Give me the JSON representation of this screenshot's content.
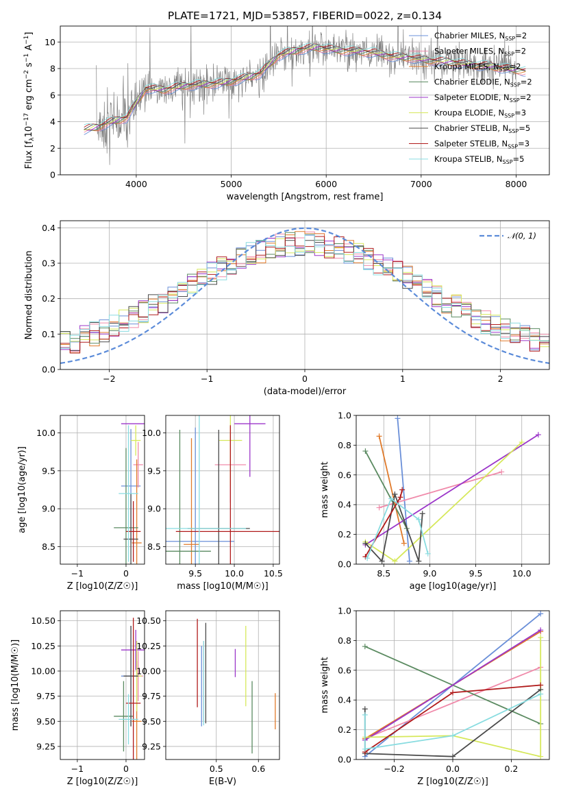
{
  "title": "PLATE=1721, MJD=53857, FIBERID=0022, z=0.134",
  "colors": {
    "data": "#808080",
    "normal": "#5b8bd9"
  },
  "series": [
    {
      "name": "Chabrier MILES, N$_{SSP}$=2",
      "leg_main": "Chabrier MILES, N",
      "leg_val": "=2",
      "color": "#6a8fd8"
    },
    {
      "name": "Salpeter MILES, N$_{SSP}$=2",
      "leg_main": "Salpeter MILES, N",
      "leg_val": "=2",
      "color": "#f08aaa"
    },
    {
      "name": "Kroupa MILES, N$_{SSP}$=2",
      "leg_main": "Kroupa MILES, N",
      "leg_val": "=2",
      "color": "#e07a2a"
    },
    {
      "name": "Chabrier ELODIE, N$_{SSP}$=2",
      "leg_main": "Chabrier ELODIE, N",
      "leg_val": "=2",
      "color": "#5a8a60"
    },
    {
      "name": "Salpeter ELODIE, N$_{SSP}$=2",
      "leg_main": "Salpeter ELODIE, N",
      "leg_val": "=2",
      "color": "#9b35c9"
    },
    {
      "name": "Kroupa ELODIE, N$_{SSP}$=3",
      "leg_main": "Kroupa ELODIE, N",
      "leg_val": "=3",
      "color": "#d6e85a"
    },
    {
      "name": "Chabrier STELIB, N$_{SSP}$=5",
      "leg_main": "Chabrier STELIB, N",
      "leg_val": "=5",
      "color": "#4a4a4a"
    },
    {
      "name": "Salpeter STELIB, N$_{SSP}$=3",
      "leg_main": "Salpeter STELIB, N",
      "leg_val": "=3",
      "color": "#b01a1a"
    },
    {
      "name": "Kroupa STELIB, N$_{SSP}$=5",
      "leg_main": "Kroupa STELIB, N",
      "leg_val": "=5",
      "color": "#88dce0"
    }
  ],
  "chart_data": [
    {
      "type": "line",
      "id": "spectrum",
      "xlabel": "wavelength [Angstrom, rest frame]",
      "ylabel": "Flux [f$_\\lambda$ 10$^{-17}$ erg cm$^{-2}$ s$^{-1}$ A$^{-1}$]",
      "ylabel_parts": [
        "Flux [f",
        "10",
        "erg cm",
        "s",
        "A",
        "]"
      ],
      "xlim": [
        3200,
        8350
      ],
      "ylim": [
        0,
        11.2
      ],
      "xticks": [
        4000,
        5000,
        6000,
        7000,
        8000
      ],
      "yticks": [
        0,
        2,
        4,
        6,
        8,
        10
      ],
      "model_continuum": {
        "x": [
          3450,
          3600,
          3700,
          3800,
          3900,
          4000,
          4100,
          4300,
          4500,
          4700,
          4900,
          5100,
          5300,
          5500,
          5700,
          5900,
          6100,
          6300,
          6500,
          6700,
          6900,
          7100,
          7300,
          7500,
          7700,
          7900,
          8100
        ],
        "y": [
          3.4,
          3.6,
          3.9,
          4.1,
          4.3,
          5.4,
          6.5,
          6.4,
          6.7,
          6.8,
          6.9,
          7.2,
          7.6,
          9.0,
          9.4,
          9.6,
          9.4,
          9.3,
          9.2,
          8.9,
          8.8,
          8.6,
          8.5,
          8.3,
          8.2,
          8.0,
          7.8
        ]
      },
      "data_note": "noisy observed spectrum shown as gray line"
    },
    {
      "type": "histogram",
      "id": "residuals",
      "xlabel": "(data-model)/error",
      "ylabel": "Normed distribution",
      "xlim": [
        -2.5,
        2.5
      ],
      "ylim": [
        0,
        0.42
      ],
      "xticks": [
        -2,
        -1,
        0,
        1,
        2
      ],
      "yticks": [
        0.0,
        0.1,
        0.2,
        0.3,
        0.4
      ],
      "legend": "$\\mathcal{N}(0,1)$",
      "legend_text": "𝒩(0, 1)",
      "bin_width": 0.1
    },
    {
      "type": "scatter",
      "id": "age_vs_Z",
      "xlabel": "Z [log$_{10}$(Z/Z$_\\odot$)]",
      "xlabel_text": "Z [log10(Z/Z☉)]",
      "ylabel": "age  [log$_{10}$(age/yr)]",
      "ylabel_text": "age  [log10(age/yr)]",
      "xlim": [
        -1.35,
        0.38
      ],
      "ylim": [
        8.27,
        10.23
      ],
      "xticks": [
        -1,
        0
      ],
      "yticks": [
        8.5,
        9.0,
        9.5,
        10.0
      ],
      "points": [
        {
          "s": 0,
          "x": 0.1,
          "xerr": 0.2,
          "y": 9.3,
          "yerr": 0.75
        },
        {
          "s": 1,
          "x": 0.25,
          "xerr": 0.1,
          "y": 9.58,
          "yerr": 0.3
        },
        {
          "s": 2,
          "x": 0.22,
          "xerr": 0.1,
          "y": 8.55,
          "yerr": 1.1
        },
        {
          "s": 3,
          "x": -1.3,
          "xerr": 0.0,
          "y": 8.44,
          "yerr": 0.0
        },
        {
          "s": 3,
          "x": 0.0,
          "xerr": 0.25,
          "y": 8.75,
          "yerr": 1.05
        },
        {
          "s": 4,
          "x": 0.2,
          "xerr": 0.3,
          "y": 10.12,
          "yerr": 0.0
        },
        {
          "s": 5,
          "x": 0.2,
          "xerr": 0.1,
          "y": 9.9,
          "yerr": 0.2
        },
        {
          "s": 6,
          "x": 0.1,
          "xerr": 0.15,
          "y": 8.6,
          "yerr": 0.6
        },
        {
          "s": 7,
          "x": 0.15,
          "xerr": 0.15,
          "y": 8.7,
          "yerr": 0.4
        },
        {
          "s": 8,
          "x": 0.05,
          "xerr": 0.2,
          "y": 9.2,
          "yerr": 0.9
        }
      ]
    },
    {
      "type": "scatter",
      "id": "age_vs_mass",
      "xlabel": "mass [log$_{10}$(M/M$_\\odot$)]",
      "xlabel_text": "mass [log10(M/M☉)]",
      "xlim": [
        9.12,
        10.58
      ],
      "ylim": [
        8.27,
        10.23
      ],
      "xticks": [
        9.5,
        10.0,
        10.5
      ],
      "yticks": [
        8.5,
        9.0,
        9.5,
        10.0
      ],
      "points": [
        {
          "s": 0,
          "x": 9.5,
          "xerr": 0.5,
          "y": 8.57,
          "yerr": 1.5
        },
        {
          "s": 1,
          "x": 9.95,
          "xerr": 0.2,
          "y": 9.58,
          "yerr": 0.5
        },
        {
          "s": 2,
          "x": 9.45,
          "xerr": 0.1,
          "y": 8.53,
          "yerr": 1.4
        },
        {
          "s": 3,
          "x": 9.3,
          "xerr": 0.4,
          "y": 8.44,
          "yerr": 1.6
        },
        {
          "s": 4,
          "x": 10.2,
          "xerr": 0.2,
          "y": 10.12,
          "yerr": 0.7
        },
        {
          "s": 5,
          "x": 9.95,
          "xerr": 0.15,
          "y": 9.9,
          "yerr": 0.6
        },
        {
          "s": 6,
          "x": 9.8,
          "xerr": 0.4,
          "y": 8.74,
          "yerr": 1.3
        },
        {
          "s": 7,
          "x": 9.95,
          "xerr": 0.7,
          "y": 8.7,
          "yerr": 1.4
        },
        {
          "s": 8,
          "x": 9.55,
          "xerr": 0.6,
          "y": 8.74,
          "yerr": 1.5
        }
      ]
    },
    {
      "type": "line",
      "id": "massweight_vs_age",
      "xlabel": "age  [log$_{10}$(age/yr)]",
      "xlabel_text": "age  [log10(age/yr)]",
      "ylabel": "mass weight",
      "xlim": [
        8.2,
        10.3
      ],
      "ylim": [
        0,
        1.0
      ],
      "xticks": [
        8.5,
        9.0,
        9.5,
        10.0
      ],
      "yticks": [
        0.0,
        0.2,
        0.4,
        0.6,
        0.8,
        1.0
      ],
      "lines": [
        {
          "s": 0,
          "x": [
            8.65,
            8.78
          ],
          "y": [
            0.98,
            0.02
          ]
        },
        {
          "s": 1,
          "x": [
            8.45,
            9.78
          ],
          "y": [
            0.38,
            0.62
          ]
        },
        {
          "s": 2,
          "x": [
            8.45,
            8.72
          ],
          "y": [
            0.86,
            0.14
          ]
        },
        {
          "s": 3,
          "x": [
            8.3,
            8.75
          ],
          "y": [
            0.76,
            0.24
          ]
        },
        {
          "s": 4,
          "x": [
            8.3,
            10.18
          ],
          "y": [
            0.13,
            0.87
          ]
        },
        {
          "s": 5,
          "x": [
            8.3,
            8.62,
            10.0
          ],
          "y": [
            0.15,
            0.02,
            0.82
          ]
        },
        {
          "s": 6,
          "x": [
            8.3,
            8.48,
            8.62,
            8.88,
            8.92
          ],
          "y": [
            0.14,
            0.02,
            0.47,
            0.02,
            0.34
          ]
        },
        {
          "s": 7,
          "x": [
            8.3,
            8.68,
            8.7
          ],
          "y": [
            0.05,
            0.45,
            0.5
          ]
        },
        {
          "s": 8,
          "x": [
            8.32,
            8.58,
            8.88,
            8.98
          ],
          "y": [
            0.04,
            0.44,
            0.3,
            0.07
          ]
        }
      ]
    },
    {
      "type": "scatter",
      "id": "mass_vs_Z",
      "xlabel": "Z [log$_{10}$(Z/Z$_\\odot$)]",
      "xlabel_text": "Z [log10(Z/Z☉)]",
      "ylabel": "mass [log$_{10}$(M/M$_\\odot$)]",
      "ylabel_text": "mass [log10(M/M☉)]",
      "xlim": [
        -1.35,
        0.38
      ],
      "ylim": [
        9.12,
        10.6
      ],
      "xticks": [
        -1,
        0
      ],
      "yticks": [
        9.25,
        9.5,
        9.75,
        10.0,
        10.25,
        10.5
      ],
      "points": [
        {
          "s": 0,
          "x": 0.1,
          "xerr": 0.2,
          "y": 9.95,
          "yerr": 0.5
        },
        {
          "s": 1,
          "x": 0.25,
          "xerr": 0.1,
          "y": 9.95,
          "yerr": 0.25
        },
        {
          "s": 2,
          "x": 0.22,
          "xerr": 0.1,
          "y": 9.5,
          "yerr": 0.6
        },
        {
          "s": 3,
          "x": -1.3,
          "xerr": 0.0,
          "y": 9.3,
          "yerr": 0.0
        },
        {
          "s": 3,
          "x": -0.05,
          "xerr": 0.2,
          "y": 9.55,
          "yerr": 0.35
        },
        {
          "s": 4,
          "x": 0.2,
          "xerr": 0.3,
          "y": 10.21,
          "yerr": 0.2
        },
        {
          "s": 5,
          "x": 0.22,
          "xerr": 0.1,
          "y": 9.95,
          "yerr": 0.35
        },
        {
          "s": 6,
          "x": 0.1,
          "xerr": 0.15,
          "y": 9.95,
          "yerr": 0.5
        },
        {
          "s": 7,
          "x": 0.15,
          "xerr": 0.15,
          "y": 9.68,
          "yerr": 0.85
        },
        {
          "s": 8,
          "x": 0.05,
          "xerr": 0.2,
          "y": 9.52,
          "yerr": 0.25
        }
      ]
    },
    {
      "type": "scatter",
      "id": "mass_vs_ebv",
      "xlabel": "E(B-V)",
      "xlim": [
        0.38,
        0.65
      ],
      "ylim": [
        9.12,
        10.6
      ],
      "xticks": [
        0.5,
        0.6
      ],
      "yticks": [
        9.25,
        9.5,
        9.75,
        10.0,
        10.25,
        10.5
      ],
      "points": [
        {
          "s": 0,
          "x": 0.465,
          "xerr": 0,
          "y": 9.85,
          "yerr": 0.4
        },
        {
          "s": 1,
          "x": 0.47,
          "xerr": 0,
          "y": 9.9,
          "yerr": 0.4
        },
        {
          "s": 2,
          "x": 0.64,
          "xerr": 0,
          "y": 9.6,
          "yerr": 0.18
        },
        {
          "s": 3,
          "x": 0.585,
          "xerr": 0,
          "y": 9.54,
          "yerr": 0.36
        },
        {
          "s": 4,
          "x": 0.545,
          "xerr": 0,
          "y": 10.08,
          "yerr": 0.14
        },
        {
          "s": 5,
          "x": 0.57,
          "xerr": 0,
          "y": 10.05,
          "yerr": 0.4
        },
        {
          "s": 6,
          "x": 0.475,
          "xerr": 0,
          "y": 9.98,
          "yerr": 0.5
        },
        {
          "s": 7,
          "x": 0.455,
          "xerr": 0,
          "y": 10.08,
          "yerr": 0.44
        },
        {
          "s": 8,
          "x": 0.47,
          "xerr": 0,
          "y": 9.88,
          "yerr": 0.42
        }
      ]
    },
    {
      "type": "line",
      "id": "massweight_vs_Z",
      "xlabel": "Z [log$_{10}$(Z/Z$_\\odot$)]",
      "xlabel_text": "Z [log10(Z/Z☉)]",
      "ylabel": "mass weight",
      "xlim": [
        -0.33,
        0.33
      ],
      "ylim": [
        0,
        1.0
      ],
      "xticks": [
        -0.2,
        0.0,
        0.2
      ],
      "yticks": [
        0.0,
        0.2,
        0.4,
        0.6,
        0.8,
        1.0
      ],
      "lines": [
        {
          "s": 0,
          "x": [
            -0.3,
            0.3
          ],
          "y": [
            0.02,
            0.98
          ]
        },
        {
          "s": 1,
          "x": [
            -0.3,
            0.3
          ],
          "y": [
            0.14,
            0.62
          ]
        },
        {
          "s": 2,
          "x": [
            -0.3,
            0.3
          ],
          "y": [
            0.14,
            0.86
          ]
        },
        {
          "s": 3,
          "x": [
            -0.3,
            0.3
          ],
          "y": [
            0.76,
            0.24
          ]
        },
        {
          "s": 4,
          "x": [
            -0.3,
            0.3
          ],
          "y": [
            0.13,
            0.87
          ]
        },
        {
          "s": 5,
          "x": [
            -0.3,
            0.0,
            0.3,
            0.3
          ],
          "y": [
            0.15,
            0.16,
            0.02,
            0.82
          ]
        },
        {
          "s": 6,
          "x": [
            -0.3,
            -0.3,
            0.0,
            0.3
          ],
          "y": [
            0.34,
            0.04,
            0.02,
            0.47
          ]
        },
        {
          "s": 7,
          "x": [
            -0.3,
            0.0,
            0.3
          ],
          "y": [
            0.05,
            0.45,
            0.5
          ]
        },
        {
          "s": 8,
          "x": [
            -0.3,
            -0.3,
            0.0,
            0.3
          ],
          "y": [
            0.3,
            0.07,
            0.16,
            0.44
          ]
        }
      ]
    }
  ]
}
